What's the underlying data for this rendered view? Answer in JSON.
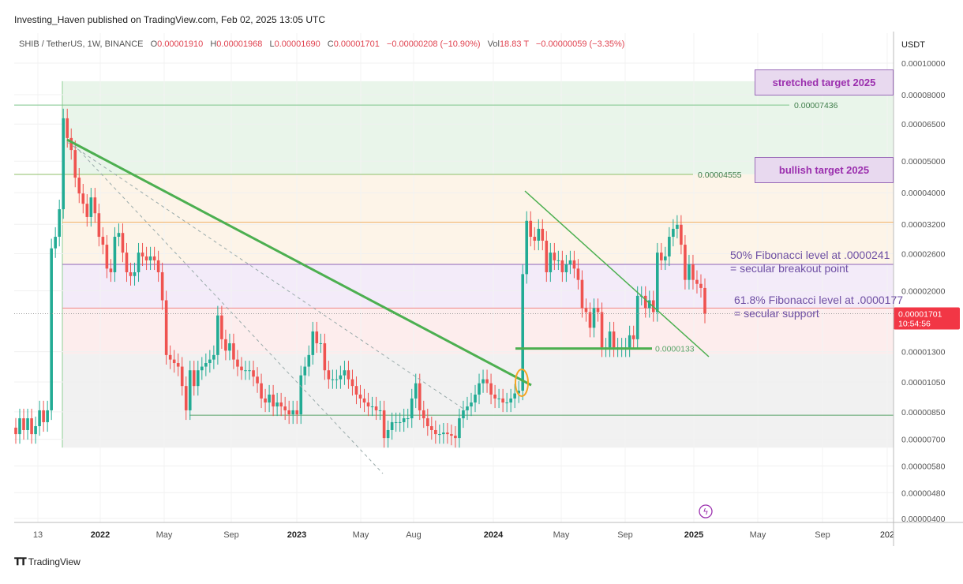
{
  "publisher": "Investing_Haven published on TradingView.com, Feb 02, 2025 13:05 UTC",
  "legend": {
    "symbol": "SHIB / TetherUS, 1W, BINANCE",
    "open_label": "O",
    "open": "0.00001910",
    "high_label": "H",
    "high": "0.00001968",
    "low_label": "L",
    "low": "0.00001690",
    "close_label": "C",
    "close": "0.00001701",
    "change": "−0.00000208 (−10.90%)",
    "vol_label": "Vol",
    "vol": "18.83 T",
    "vol_change": "−0.00000059 (−3.35%)"
  },
  "colors": {
    "up": "#22ab94",
    "down": "#ef5350",
    "accent_purple": "#9b2fae",
    "price_badge": "#f23645"
  },
  "chart_data": {
    "type": "candlestick",
    "interval": "1W",
    "yscale": "log",
    "ylim": [
      4e-06,
      0.0001
    ],
    "currency": "USDT",
    "first_open": 7.6e-06,
    "closes": [
      7.26e-06,
      8.12e-06,
      7.47e-06,
      8.12e-06,
      7.26e-06,
      7.68e-06,
      8.59e-06,
      7.9e-06,
      8.59e-06,
      2.7e-05,
      2.93e-05,
      3.56e-05,
      6.77e-05,
      5.89e-05,
      5.41e-05,
      4.45e-05,
      3.98e-05,
      3.7e-05,
      3.37e-05,
      3.87e-05,
      3.46e-05,
      2.93e-05,
      2.77e-05,
      2.34e-05,
      2.28e-05,
      2.93e-05,
      3.01e-05,
      2.62e-05,
      2.28e-05,
      2.22e-05,
      2.28e-05,
      2.62e-05,
      2.55e-05,
      2.48e-05,
      2.55e-05,
      2.48e-05,
      2.28e-05,
      1.87e-05,
      1.27e-05,
      1.23e-05,
      1.2e-05,
      1.17e-05,
      1.02e-05,
      8.59e-06,
      1.14e-05,
      1.02e-05,
      1.14e-05,
      1.17e-05,
      1.2e-05,
      1.23e-05,
      1.27e-05,
      1.68e-05,
      1.42e-05,
      1.31e-05,
      1.38e-05,
      1.23e-05,
      1.17e-05,
      1.14e-05,
      1.14e-05,
      1.14e-05,
      1.09e-05,
      1.04e-05,
      9.34e-06,
      9.08e-06,
      9.6e-06,
      8.83e-06,
      9.08e-06,
      8.83e-06,
      8.59e-06,
      8.35e-06,
      8.59e-06,
      8.35e-06,
      1.1e-05,
      1.17e-05,
      1.27e-05,
      1.5e-05,
      1.38e-05,
      1.38e-05,
      1.14e-05,
      1.07e-05,
      1.07e-05,
      1.07e-05,
      1.1e-05,
      1.14e-05,
      1.07e-05,
      1.02e-05,
      9.6e-06,
      9.34e-06,
      9.08e-06,
      8.83e-06,
      8.83e-06,
      8.59e-06,
      8.59e-06,
      7.06e-06,
      7.47e-06,
      7.9e-06,
      7.9e-06,
      7.9e-06,
      8.12e-06,
      8.12e-06,
      9.34e-06,
      1.04e-05,
      8.59e-06,
      8.12e-06,
      7.68e-06,
      7.47e-06,
      7.26e-06,
      7.26e-06,
      7.34e-06,
      7.26e-06,
      7.18e-06,
      7.06e-06,
      8.12e-06,
      8.59e-06,
      8.83e-06,
      9.08e-06,
      9.6e-06,
      1.04e-05,
      1.07e-05,
      1.04e-05,
      9.6e-06,
      9.34e-06,
      9.34e-06,
      9.08e-06,
      9.08e-06,
      9.34e-06,
      9.68e-06,
      9.87e-06,
      2.25e-05,
      3.28e-05,
      2.93e-05,
      2.85e-05,
      3.1e-05,
      2.85e-05,
      2.28e-05,
      2.62e-05,
      2.48e-05,
      2.48e-05,
      2.28e-05,
      2.41e-05,
      2.48e-05,
      2.34e-05,
      2.16e-05,
      1.77e-05,
      1.72e-05,
      1.54e-05,
      1.77e-05,
      1.72e-05,
      1.34e-05,
      1.34e-05,
      1.5e-05,
      1.34e-05,
      1.34e-05,
      1.34e-05,
      1.34e-05,
      1.46e-05,
      1.42e-05,
      1.93e-05,
      1.93e-05,
      1.77e-05,
      1.87e-05,
      1.72e-05,
      2.62e-05,
      2.48e-05,
      2.55e-05,
      2.93e-05,
      3.1e-05,
      3.19e-05,
      2.77e-05,
      2.16e-05,
      2.41e-05,
      2.16e-05,
      2.1e-05,
      2.04e-05,
      1.701e-05
    ],
    "y_tick_labels": [
      "0.00010000",
      "0.00008000",
      "0.00006500",
      "0.00005000",
      "0.00004000",
      "0.00003200",
      "0.00002600",
      "0.00002000",
      "0.00001300",
      "0.00001050",
      "0.00000850",
      "0.00000700",
      "0.00000580",
      "0.00000480",
      "0.00000400"
    ],
    "x_tick_labels": [
      "13",
      "2022",
      "May",
      "Sep",
      "2023",
      "May",
      "Aug",
      "2024",
      "May",
      "Sep",
      "2025",
      "May",
      "Sep",
      "202"
    ],
    "fib_bands": [
      {
        "from": 8.8e-05,
        "to": 4.555e-05,
        "color": "#e9f5ea"
      },
      {
        "from": 4.555e-05,
        "to": 2.41e-05,
        "color": "#fdf4e8"
      },
      {
        "from": 2.41e-05,
        "to": 1.77e-05,
        "color": "#f3ebf9"
      },
      {
        "from": 1.77e-05,
        "to": 1.28e-05,
        "color": "#fdeded"
      },
      {
        "from": 1.28e-05,
        "to": 6.6e-06,
        "color": "#f1f1f1"
      }
    ],
    "levels": [
      {
        "price": 7.436e-05,
        "label": "0.00007436",
        "color": "#7cc48a"
      },
      {
        "price": 4.555e-05,
        "label": "0.00004555",
        "color": "#8fbf6a"
      },
      {
        "price": 3.25e-05,
        "label": "",
        "color": "#f0b36a"
      },
      {
        "price": 2.41e-05,
        "label": "",
        "color": "#8e63b8"
      },
      {
        "price": 1.77e-05,
        "label": "",
        "color": "#f08a8a"
      },
      {
        "price": 8.3e-06,
        "label": "",
        "color": "#5aa46a"
      }
    ],
    "support_label": "0.0000133",
    "current_price": "0.00001701",
    "countdown": "10:54:56",
    "annotations": {
      "stretched": "stretched target 2025",
      "bullish": "bullish target 2025",
      "fib50_line1": "50% Fibonacci level at .0000241",
      "fib50_line2": "= secular breakout point",
      "fib618_line1": "61.8% Fibonacci level at .0000177",
      "fib618_line2": "= secular support"
    }
  },
  "footer": {
    "logo": "TV",
    "brand": "TradingView"
  }
}
